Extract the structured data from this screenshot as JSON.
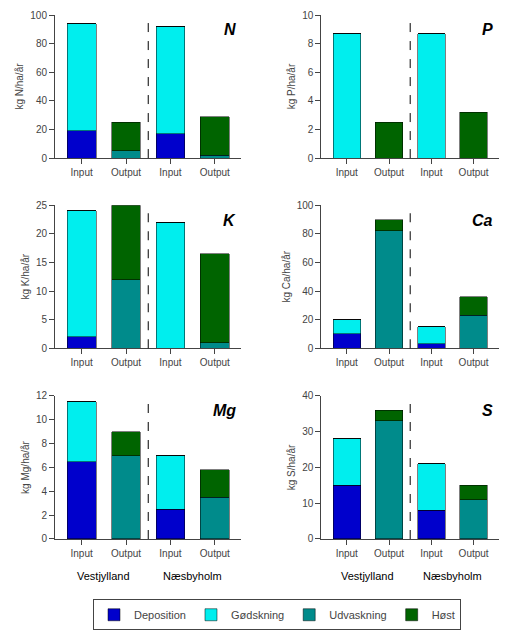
{
  "chart_data": [
    {
      "type": "bar",
      "stacked": true,
      "grid": false,
      "legend": "bottom",
      "title": "N",
      "y_label": "kg N/ha/år",
      "categories": [
        "Input",
        "Output",
        "Input",
        "Output"
      ],
      "series": [
        {
          "name": "Deposition",
          "color": "#0000CC",
          "values": [
            19,
            0,
            17,
            0
          ]
        },
        {
          "name": "Gødskning",
          "color": "#00EEEE",
          "values": [
            75,
            0,
            75,
            0
          ]
        },
        {
          "name": "Udvaskning",
          "color": "#008B8B",
          "values": [
            0,
            5,
            0,
            2
          ]
        },
        {
          "name": "Høst",
          "color": "#006400",
          "values": [
            0,
            20,
            0,
            27
          ]
        }
      ],
      "ylim": [
        0,
        100
      ],
      "yticks": [
        0,
        20,
        40,
        60,
        80,
        100
      ]
    },
    {
      "type": "bar",
      "stacked": true,
      "grid": false,
      "title": "P",
      "y_label": "kg P/ha/år",
      "categories": [
        "Input",
        "Output",
        "Input",
        "Output"
      ],
      "series": [
        {
          "name": "Deposition",
          "color": "#0000CC",
          "values": [
            0,
            0,
            0,
            0
          ]
        },
        {
          "name": "Gødskning",
          "color": "#00EEEE",
          "values": [
            8.7,
            0,
            8.7,
            0
          ]
        },
        {
          "name": "Udvaskning",
          "color": "#008B8B",
          "values": [
            0,
            0,
            0,
            0
          ]
        },
        {
          "name": "Høst",
          "color": "#006400",
          "values": [
            0,
            2.5,
            0,
            3.2
          ]
        }
      ],
      "ylim": [
        0,
        10
      ],
      "yticks": [
        0,
        2,
        4,
        6,
        8,
        10
      ]
    },
    {
      "type": "bar",
      "stacked": true,
      "grid": false,
      "title": "K",
      "y_label": "kg K/ha/år",
      "categories": [
        "Input",
        "Output",
        "Input",
        "Output"
      ],
      "series": [
        {
          "name": "Deposition",
          "color": "#0000CC",
          "values": [
            2,
            0,
            0,
            0
          ]
        },
        {
          "name": "Gødskning",
          "color": "#00EEEE",
          "values": [
            22,
            0,
            22,
            0
          ]
        },
        {
          "name": "Udvaskning",
          "color": "#008B8B",
          "values": [
            0,
            12,
            0,
            1
          ]
        },
        {
          "name": "Høst",
          "color": "#006400",
          "values": [
            0,
            13,
            0,
            15.5
          ]
        }
      ],
      "ylim": [
        0,
        25
      ],
      "yticks": [
        0,
        5,
        10,
        15,
        20,
        25
      ]
    },
    {
      "type": "bar",
      "stacked": true,
      "grid": false,
      "title": "Ca",
      "y_label": "kg Ca/ha/år",
      "categories": [
        "Input",
        "Output",
        "Input",
        "Output"
      ],
      "series": [
        {
          "name": "Deposition",
          "color": "#0000CC",
          "values": [
            10,
            0,
            3,
            0
          ]
        },
        {
          "name": "Gødskning",
          "color": "#00EEEE",
          "values": [
            10,
            0,
            12,
            0
          ]
        },
        {
          "name": "Udvaskning",
          "color": "#008B8B",
          "values": [
            0,
            82,
            0,
            23
          ]
        },
        {
          "name": "Høst",
          "color": "#006400",
          "values": [
            0,
            8,
            0,
            13
          ]
        }
      ],
      "ylim": [
        0,
        100
      ],
      "yticks": [
        0,
        20,
        40,
        60,
        80,
        100
      ]
    },
    {
      "type": "bar",
      "stacked": true,
      "grid": false,
      "title": "Mg",
      "y_label": "kg Mg/ha/år",
      "categories": [
        "Input",
        "Output",
        "Input",
        "Output"
      ],
      "series": [
        {
          "name": "Deposition",
          "color": "#0000CC",
          "values": [
            6.5,
            0,
            2.5,
            0
          ]
        },
        {
          "name": "Gødskning",
          "color": "#00EEEE",
          "values": [
            5,
            0,
            4.5,
            0
          ]
        },
        {
          "name": "Udvaskning",
          "color": "#008B8B",
          "values": [
            0,
            7,
            0,
            3.5
          ]
        },
        {
          "name": "Høst",
          "color": "#006400",
          "values": [
            0,
            2,
            0,
            2.3
          ]
        }
      ],
      "ylim": [
        0,
        12
      ],
      "yticks": [
        0,
        2,
        4,
        6,
        8,
        10,
        12
      ],
      "annotations": [
        "Vestjylland",
        "Næsbyholm"
      ]
    },
    {
      "type": "bar",
      "stacked": true,
      "grid": false,
      "title": "S",
      "y_label": "kg S/ha/år",
      "categories": [
        "Input",
        "Output",
        "Input",
        "Output"
      ],
      "series": [
        {
          "name": "Deposition",
          "color": "#0000CC",
          "values": [
            15,
            0,
            8,
            0
          ]
        },
        {
          "name": "Gødskning",
          "color": "#00EEEE",
          "values": [
            13,
            0,
            13,
            0
          ]
        },
        {
          "name": "Udvaskning",
          "color": "#008B8B",
          "values": [
            0,
            33,
            0,
            11
          ]
        },
        {
          "name": "Høst",
          "color": "#006400",
          "values": [
            0,
            3,
            0,
            4
          ]
        }
      ],
      "ylim": [
        0,
        40
      ],
      "yticks": [
        0,
        10,
        20,
        30,
        40
      ],
      "annotations": [
        "Vestjylland",
        "Næsbyholm"
      ]
    }
  ]
}
